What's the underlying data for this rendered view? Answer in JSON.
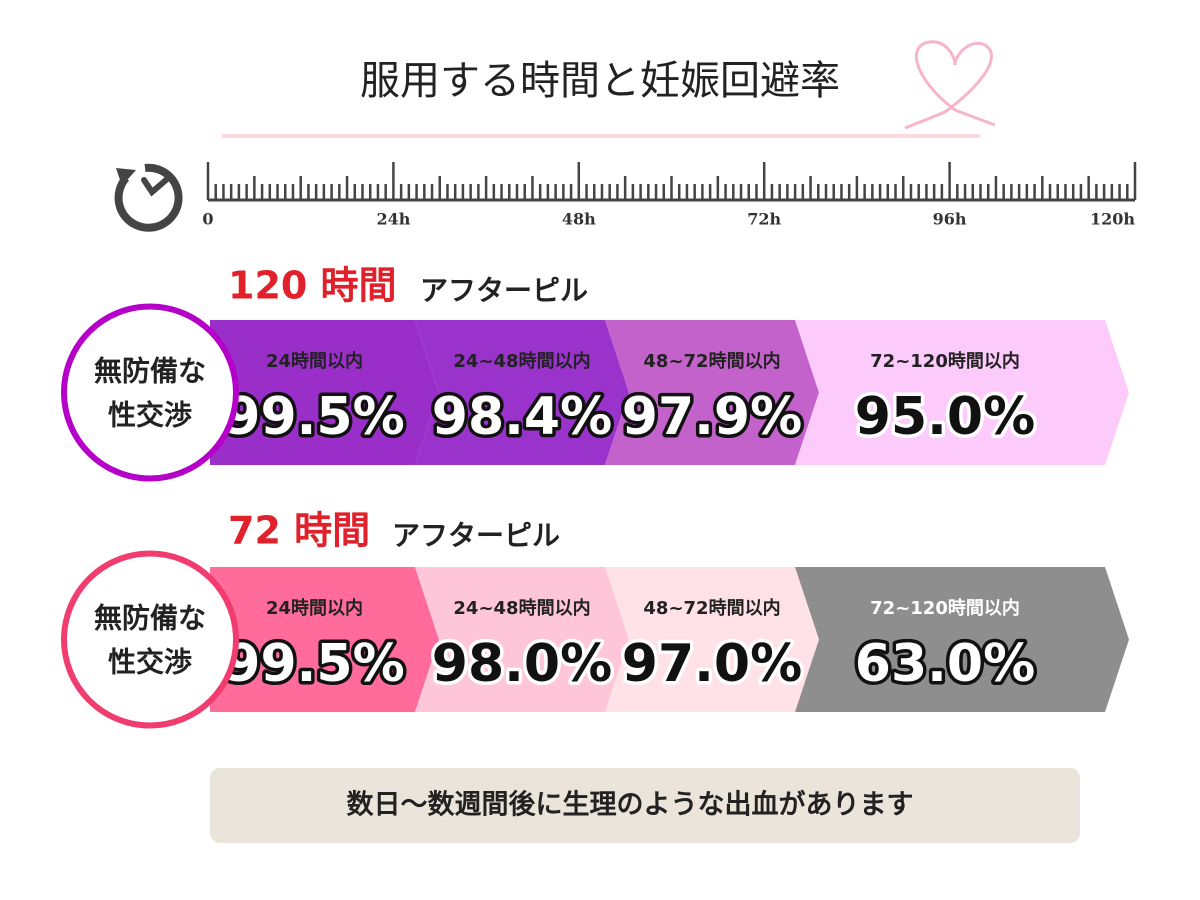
{
  "title": "服用する時間と妊娠回避率",
  "timeline": {
    "labels": [
      "0",
      "24h",
      "48h",
      "72h",
      "96h",
      "120h"
    ]
  },
  "sections": [
    {
      "hours": "120 時間",
      "pill": "アフターピル",
      "condition": [
        "無防備な",
        "性交渉"
      ],
      "segments": [
        {
          "label": "24時間以内",
          "value": "99.5%"
        },
        {
          "label": "24~48時間以内",
          "value": "98.4%"
        },
        {
          "label": "48~72時間以内",
          "value": "97.9%"
        },
        {
          "label": "72~120時間以内",
          "value": "95.0%"
        }
      ]
    },
    {
      "hours": "72 時間",
      "pill": "アフターピル",
      "condition": [
        "無防備な",
        "性交渉"
      ],
      "segments": [
        {
          "label": "24時間以内",
          "value": "99.5%"
        },
        {
          "label": "24~48時間以内",
          "value": "98.0%"
        },
        {
          "label": "48~72時間以内",
          "value": "97.0%"
        },
        {
          "label": "72~120時間以内",
          "value": "63.0%"
        }
      ]
    }
  ],
  "note": "数日〜数週間後に生理のような出血があります"
}
